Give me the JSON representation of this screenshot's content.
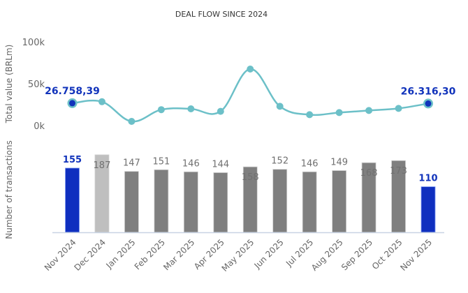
{
  "chart_data": {
    "title": "DEAL FLOW SINCE 2024",
    "categories": [
      "Nov 2024",
      "Dec 2024",
      "Jan 2025",
      "Feb 2025",
      "Mar 2025",
      "Apr 2025",
      "May 2025",
      "Jun 2025",
      "Jul 2025",
      "Aug 2025",
      "Sep 2025",
      "Oct 2025",
      "Nov 2025"
    ],
    "charts": [
      {
        "type": "line",
        "name": "Total value",
        "ylabel": "Total value (BRLm)",
        "ylim": [
          0,
          100000
        ],
        "yticks": [
          {
            "value": 0,
            "label": "0k"
          },
          {
            "value": 50000,
            "label": "50k"
          },
          {
            "value": 100000,
            "label": "100k"
          }
        ],
        "values": [
          26758.39,
          28500,
          5000,
          19000,
          20000,
          17000,
          67500,
          23000,
          13000,
          15500,
          18000,
          20500,
          26316.3
        ],
        "highlighted_labels": [
          {
            "index": 0,
            "label": "26.758,39"
          },
          {
            "index": 12,
            "label": "26.316,30"
          }
        ],
        "color": "#6cc0c8",
        "highlight_color": "#1133bb"
      },
      {
        "type": "bar",
        "name": "Number of transactions",
        "ylabel": "Number of transactions",
        "ylim": [
          0,
          200
        ],
        "values": [
          155,
          187,
          147,
          151,
          146,
          144,
          158,
          152,
          146,
          149,
          168,
          173,
          110
        ],
        "labels": [
          "155",
          "187",
          "147",
          "151",
          "146",
          "144",
          "158",
          "152",
          "146",
          "149",
          "168",
          "173",
          "110"
        ],
        "bar_styles": [
          "highlight",
          "light",
          "normal",
          "normal",
          "normal",
          "normal",
          "normal",
          "normal",
          "normal",
          "normal",
          "normal",
          "normal",
          "highlight"
        ],
        "label_positions": [
          "above",
          "inside",
          "above",
          "above",
          "above",
          "above",
          "inside",
          "above",
          "above",
          "above",
          "inside",
          "inside",
          "above"
        ],
        "colors": {
          "highlight": "#0f2fbf",
          "light": "#bfbfbf",
          "normal": "#7f7f7f"
        }
      }
    ]
  }
}
